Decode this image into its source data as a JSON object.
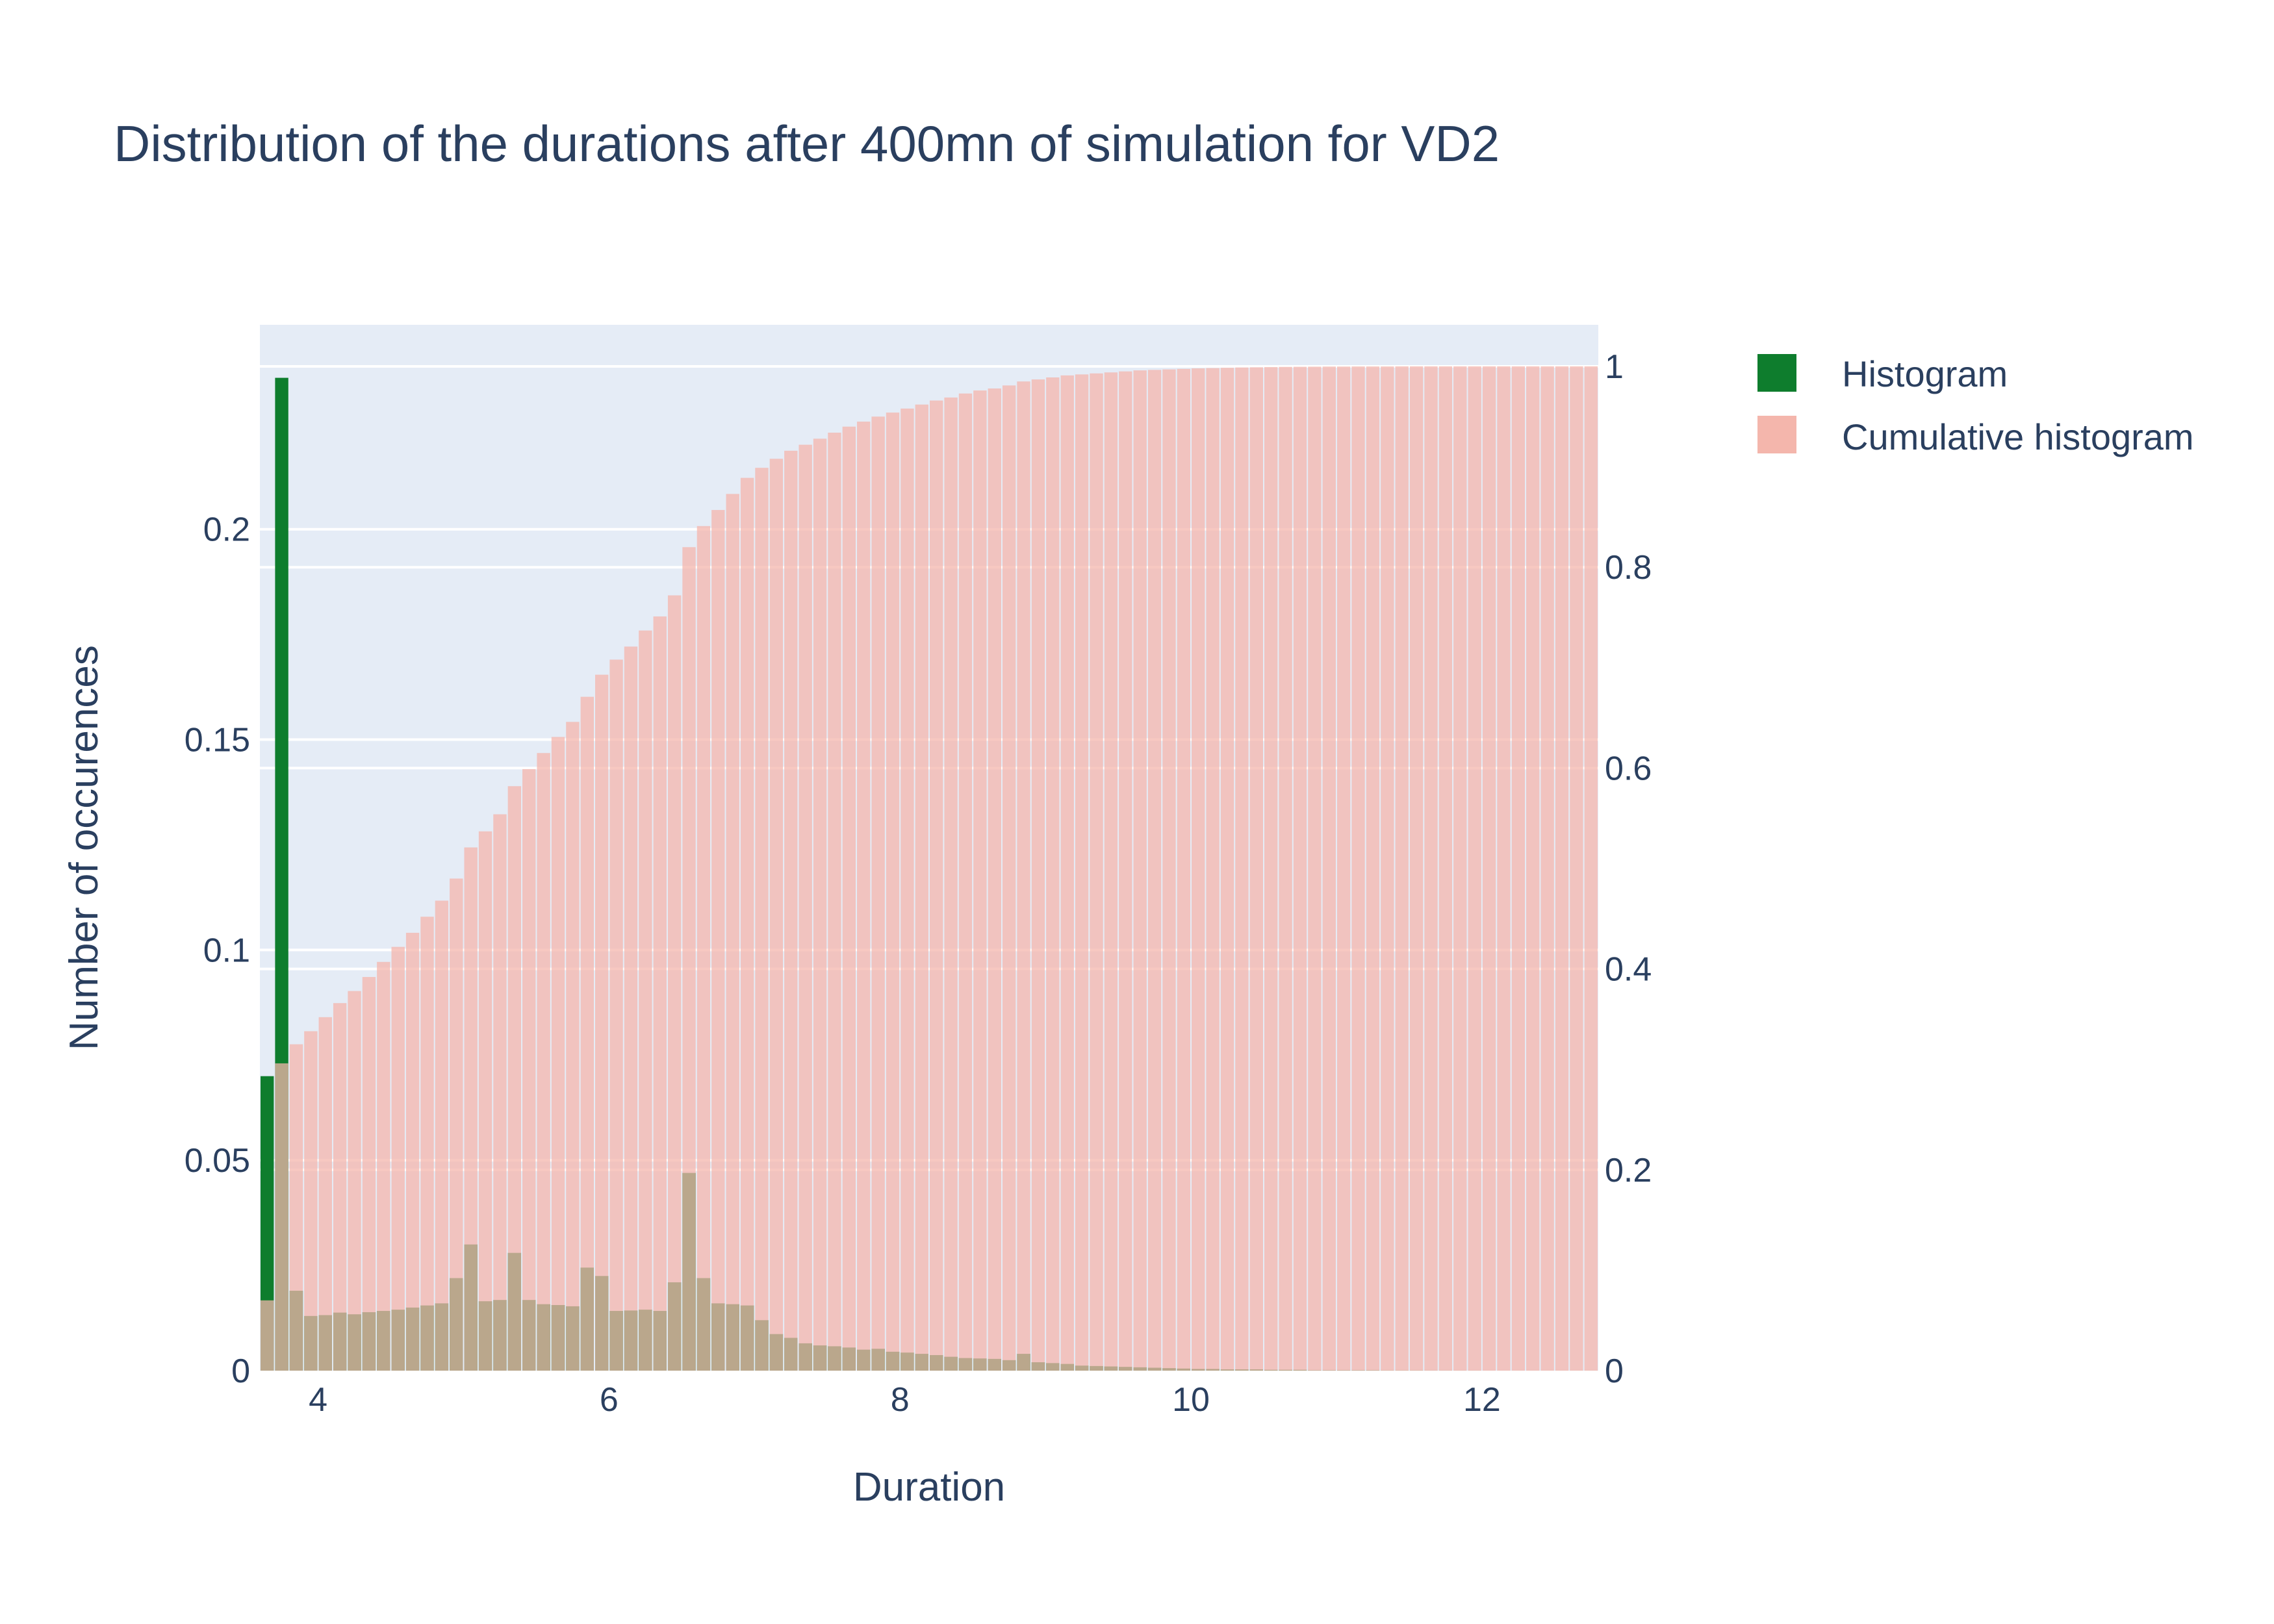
{
  "colors": {
    "plot_bg": "#E5ECF6",
    "grid": "#ffffff",
    "text": "#2a3f5f",
    "histogram": "#0e7d2d",
    "cumulative": "#f4b6ac"
  },
  "chart_data": {
    "type": "bar",
    "title": "Distribution of the durations after 400mn of simulation for VD2",
    "xlabel": "Duration",
    "ylabel": "Number of occurences",
    "y2label": "",
    "xlim": [
      3.6,
      12.8
    ],
    "ylim": [
      0,
      0.2486
    ],
    "y2lim": [
      0,
      1.0414
    ],
    "bin_start": 3.6,
    "bin_width": 0.1,
    "x_ticks": [
      4,
      6,
      8,
      10,
      12
    ],
    "y_ticks": [
      0,
      0.05,
      0.1,
      0.15,
      0.2
    ],
    "y_tick_labels": [
      "0",
      "0.05",
      "0.1",
      "0.15",
      "0.2"
    ],
    "y2_ticks": [
      0,
      0.2,
      0.4,
      0.6,
      0.8,
      1
    ],
    "y2_tick_labels": [
      "0",
      "0.2",
      "0.4",
      "0.6",
      "0.8",
      "1"
    ],
    "grid": true,
    "legend_position": "top-right",
    "series": [
      {
        "name": "Histogram",
        "axis": "left",
        "values": [
          0.07,
          0.236,
          0.019,
          0.013,
          0.0132,
          0.0138,
          0.0134,
          0.0139,
          0.0142,
          0.0145,
          0.015,
          0.0155,
          0.016,
          0.022,
          0.03,
          0.0165,
          0.0168,
          0.028,
          0.0168,
          0.0158,
          0.0156,
          0.0153,
          0.0245,
          0.0225,
          0.0142,
          0.0143,
          0.0145,
          0.0142,
          0.021,
          0.047,
          0.022,
          0.016,
          0.0158,
          0.0155,
          0.012,
          0.0087,
          0.0078,
          0.0065,
          0.006,
          0.0058,
          0.0055,
          0.005,
          0.0052,
          0.0045,
          0.0043,
          0.004,
          0.0037,
          0.0033,
          0.003,
          0.0029,
          0.0028,
          0.0025,
          0.004,
          0.002,
          0.0018,
          0.0016,
          0.0012,
          0.0011,
          0.001,
          0.0009,
          0.0008,
          0.0007,
          0.0006,
          0.0005,
          0.0004,
          0.0004,
          0.0003,
          0.0003,
          0.0003,
          0.0002,
          0.0002,
          0.0002,
          0.0001,
          0.0001,
          0.0001,
          0.0001,
          0.0001,
          5e-05,
          5e-05,
          5e-05,
          3e-05,
          3e-05,
          2e-05,
          2e-05,
          1e-05,
          1e-05,
          1e-05,
          1e-05,
          1e-05,
          1e-05,
          1e-05,
          1e-05
        ]
      },
      {
        "name": "Cumulative histogram",
        "axis": "right",
        "values": [
          0.07,
          0.306,
          0.325,
          0.338,
          0.352,
          0.366,
          0.378,
          0.392,
          0.407,
          0.422,
          0.436,
          0.452,
          0.468,
          0.49,
          0.521,
          0.537,
          0.554,
          0.582,
          0.599,
          0.615,
          0.631,
          0.646,
          0.671,
          0.693,
          0.708,
          0.721,
          0.737,
          0.751,
          0.772,
          0.82,
          0.841,
          0.857,
          0.873,
          0.889,
          0.899,
          0.908,
          0.916,
          0.922,
          0.928,
          0.934,
          0.94,
          0.945,
          0.95,
          0.954,
          0.958,
          0.962,
          0.966,
          0.969,
          0.973,
          0.976,
          0.978,
          0.981,
          0.985,
          0.987,
          0.989,
          0.991,
          0.992,
          0.993,
          0.994,
          0.995,
          0.996,
          0.9965,
          0.997,
          0.9975,
          0.998,
          0.9983,
          0.9986,
          0.9989,
          0.9991,
          0.9993,
          0.9995,
          0.9996,
          0.9997,
          0.9998,
          0.9998,
          0.9999,
          0.9999,
          0.9999,
          1,
          1,
          1,
          1,
          1,
          1,
          1,
          1,
          1,
          1,
          1,
          1,
          1,
          1
        ]
      }
    ]
  }
}
